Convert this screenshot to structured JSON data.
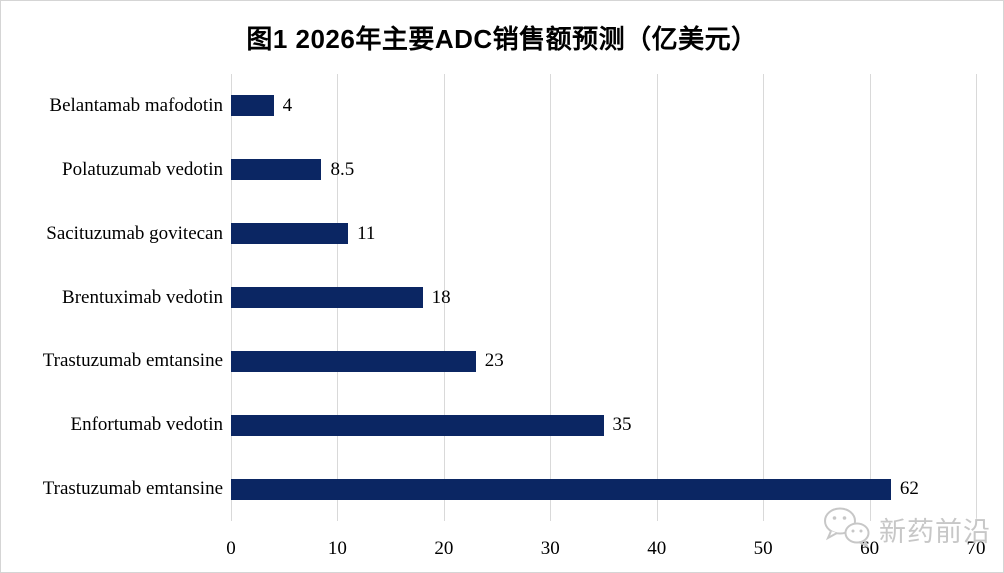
{
  "title": "图1 2026年主要ADC销售额预测（亿美元）",
  "chart_data": {
    "type": "bar",
    "orientation": "horizontal",
    "title": "图1 2026年主要ADC销售额预测（亿美元）",
    "categories": [
      "Belantamab mafodotin",
      "Polatuzumab vedotin",
      "Sacituzumab govitecan",
      "Brentuximab vedotin",
      "Trastuzumab emtansine",
      "Enfortumab vedotin",
      "Trastuzumab emtansine"
    ],
    "values": [
      4,
      8.5,
      11,
      18,
      23,
      35,
      62
    ],
    "value_labels": [
      "4",
      "8.5",
      "11",
      "18",
      "23",
      "35",
      "62"
    ],
    "x_ticks": [
      0,
      10,
      20,
      30,
      40,
      50,
      60,
      70
    ],
    "xlim": [
      0,
      70
    ],
    "xlabel": "",
    "ylabel": "",
    "grid": "vertical",
    "legend": "none",
    "bar_color": "#0b2663",
    "gridline_color": "#d9d9d9"
  },
  "watermark": {
    "text": "新药前沿",
    "icon": "wechat-icon",
    "color": "#c7c7c7"
  }
}
